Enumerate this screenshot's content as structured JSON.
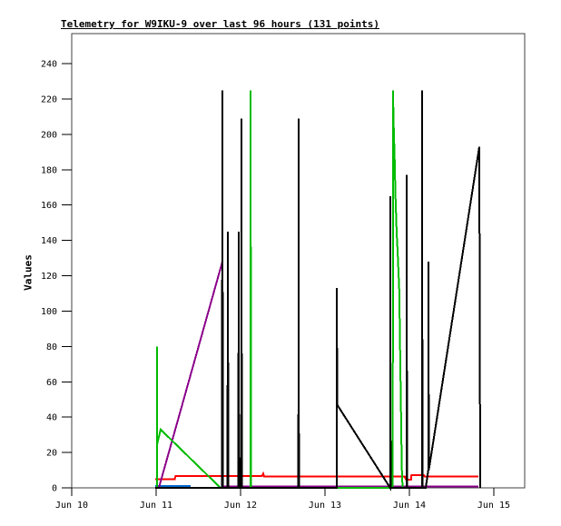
{
  "window": {
    "background": "#ffffff"
  },
  "chart_data": {
    "type": "line",
    "title": "Telemetry for W9IKU-9 over last 96 hours (131 points)",
    "ylabel": "Values",
    "xlabel": "",
    "grid": false,
    "legend": "none",
    "border_color": "#404040",
    "xlim": [
      10,
      15.366
    ],
    "ylim": [
      0,
      257
    ],
    "yticks": [
      0,
      20,
      40,
      60,
      80,
      100,
      120,
      140,
      160,
      180,
      200,
      220,
      240
    ],
    "xticks": [
      10,
      11,
      12,
      13,
      14,
      15
    ],
    "xtick_labels": [
      "Jun 10",
      "Jun 11",
      "Jun 12",
      "Jun 13",
      "Jun 14",
      "Jun 15"
    ],
    "x_unit": "day of June",
    "series": [
      {
        "name": "channel-red",
        "color": "#ff0000",
        "points": [
          [
            10.989,
            5
          ],
          [
            11.22,
            5
          ],
          [
            11.23,
            6.7
          ],
          [
            12.255,
            6.7
          ],
          [
            12.269,
            8
          ],
          [
            12.28,
            6.3
          ],
          [
            13.945,
            6.3
          ],
          [
            13.96,
            4.6
          ],
          [
            14.02,
            4.6
          ],
          [
            14.025,
            7.3
          ],
          [
            14.17,
            7.3
          ],
          [
            14.18,
            6.3
          ],
          [
            14.817,
            6.3
          ]
        ]
      },
      {
        "name": "channel-blue",
        "color": "#0066cc",
        "points": [
          [
            10.989,
            1
          ],
          [
            11.409,
            1
          ]
        ]
      },
      {
        "name": "channel-purple",
        "color": "#8b008b",
        "points": [
          [
            11.032,
            0
          ],
          [
            11.785,
            128
          ],
          [
            11.79,
            0.8
          ],
          [
            12.008,
            0.8
          ],
          [
            12.011,
            128
          ],
          [
            12.016,
            0.8
          ],
          [
            14.817,
            0.8
          ]
        ]
      },
      {
        "name": "channel-green",
        "color": "#00bb00",
        "points": [
          [
            11.009,
            0
          ],
          [
            11.011,
            80
          ],
          [
            11.013,
            25
          ],
          [
            11.054,
            33
          ],
          [
            11.763,
            0
          ],
          [
            12.118,
            0
          ],
          [
            12.12,
            225
          ],
          [
            12.124,
            0
          ],
          [
            13.804,
            0
          ],
          [
            13.806,
            225
          ],
          [
            13.81,
            214
          ],
          [
            13.815,
            203
          ],
          [
            13.825,
            187
          ],
          [
            13.835,
            166
          ],
          [
            13.85,
            144
          ],
          [
            13.86,
            134
          ],
          [
            13.87,
            123
          ],
          [
            13.88,
            112
          ],
          [
            13.89,
            80
          ],
          [
            13.9,
            45
          ],
          [
            13.91,
            12
          ],
          [
            13.915,
            5
          ],
          [
            13.92,
            0
          ]
        ]
      },
      {
        "name": "channel-black",
        "color": "#000000",
        "points": [
          [
            10.99,
            0
          ],
          [
            11.78,
            0
          ],
          [
            11.785,
            225
          ],
          [
            11.79,
            0
          ],
          [
            11.845,
            0
          ],
          [
            11.85,
            145
          ],
          [
            11.855,
            0
          ],
          [
            11.974,
            0
          ],
          [
            11.978,
            145
          ],
          [
            11.982,
            0
          ],
          [
            12.008,
            0
          ],
          [
            12.011,
            209
          ],
          [
            12.015,
            0
          ],
          [
            12.685,
            0
          ],
          [
            12.688,
            209
          ],
          [
            12.692,
            0
          ],
          [
            13.138,
            0
          ],
          [
            13.14,
            113
          ],
          [
            13.145,
            47
          ],
          [
            13.772,
            0
          ],
          [
            13.774,
            165
          ],
          [
            13.778,
            0
          ],
          [
            13.966,
            0
          ],
          [
            13.968,
            177
          ],
          [
            13.972,
            0
          ],
          [
            14.149,
            0
          ],
          [
            14.151,
            225
          ],
          [
            14.155,
            0
          ],
          [
            14.194,
            0
          ],
          [
            14.224,
            10
          ],
          [
            14.226,
            128
          ],
          [
            14.23,
            10
          ],
          [
            14.828,
            193
          ],
          [
            14.839,
            0
          ]
        ]
      }
    ]
  }
}
